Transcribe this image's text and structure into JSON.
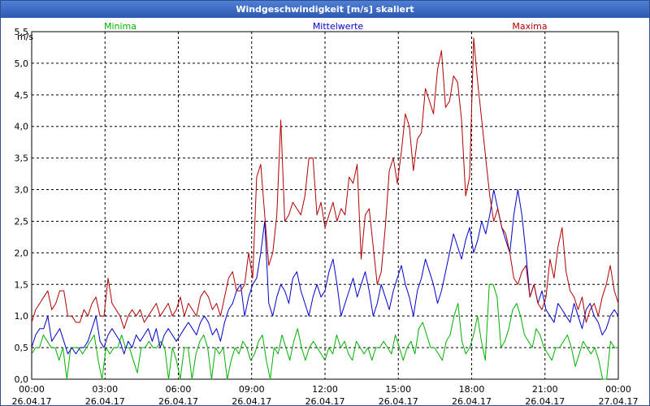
{
  "window": {
    "title": "Windgeschwindigkeit [m/s] skaliert"
  },
  "chart_data": {
    "type": "line",
    "title": "Windgeschwindigkeit [m/s] skaliert",
    "ylabel": "m/s",
    "xlabel": "",
    "ylim": [
      0,
      5.5
    ],
    "xlim": [
      0,
      24
    ],
    "grid": true,
    "legend_placement": "top",
    "y_ticks": [
      {
        "value": 0.0,
        "label": "0,0"
      },
      {
        "value": 0.5,
        "label": "0,5"
      },
      {
        "value": 1.0,
        "label": "1,0"
      },
      {
        "value": 1.5,
        "label": "1,5"
      },
      {
        "value": 2.0,
        "label": "2,0"
      },
      {
        "value": 2.5,
        "label": "2,5"
      },
      {
        "value": 3.0,
        "label": "3,0"
      },
      {
        "value": 3.5,
        "label": "3,5"
      },
      {
        "value": 4.0,
        "label": "4,0"
      },
      {
        "value": 4.5,
        "label": "4,5"
      },
      {
        "value": 5.0,
        "label": "5,0"
      },
      {
        "value": 5.5,
        "label": "5,5"
      }
    ],
    "x_ticks": [
      {
        "value": 0,
        "time": "00:00",
        "date": "26.04.17"
      },
      {
        "value": 3,
        "time": "03:00",
        "date": "26.04.17"
      },
      {
        "value": 6,
        "time": "06:00",
        "date": "26.04.17"
      },
      {
        "value": 9,
        "time": "09:00",
        "date": "26.04.17"
      },
      {
        "value": 12,
        "time": "12:00",
        "date": "26.04.17"
      },
      {
        "value": 15,
        "time": "15:00",
        "date": "26.04.17"
      },
      {
        "value": 18,
        "time": "18:00",
        "date": "26.04.17"
      },
      {
        "value": 21,
        "time": "21:00",
        "date": "26.04.17"
      },
      {
        "value": 24,
        "time": "00:00",
        "date": "27.04.17"
      }
    ],
    "series": [
      {
        "name": "Minima",
        "color": "#00b000",
        "values": [
          0.4,
          0.5,
          0.5,
          0.7,
          0.6,
          0.5,
          0.5,
          0.3,
          0.5,
          0.0,
          0.5,
          0.5,
          0.5,
          0.4,
          0.5,
          0.6,
          0.7,
          0.3,
          0.0,
          0.5,
          0.4,
          0.5,
          0.5,
          0.7,
          0.5,
          0.5,
          0.3,
          0.1,
          0.5,
          0.5,
          0.6,
          0.5,
          0.5,
          0.6,
          0.5,
          0.0,
          0.5,
          0.3,
          0.0,
          0.5,
          0.5,
          0.0,
          0.4,
          0.6,
          0.7,
          0.5,
          0.0,
          0.5,
          0.4,
          0.5,
          0.0,
          0.3,
          0.5,
          0.4,
          0.6,
          0.5,
          0.3,
          0.4,
          0.6,
          0.7,
          0.3,
          0.0,
          0.5,
          0.4,
          0.7,
          0.5,
          0.3,
          0.6,
          0.8,
          0.5,
          0.3,
          0.5,
          0.6,
          0.5,
          0.4,
          0.3,
          0.5,
          0.4,
          0.7,
          0.5,
          0.6,
          0.4,
          0.3,
          0.6,
          0.5,
          0.4,
          0.5,
          0.3,
          0.5,
          0.5,
          0.6,
          0.5,
          0.4,
          0.7,
          0.5,
          0.3,
          0.5,
          0.6,
          0.4,
          0.8,
          0.9,
          0.7,
          0.5,
          0.5,
          0.4,
          0.3,
          0.6,
          0.7,
          1.0,
          1.2,
          0.6,
          0.4,
          0.5,
          0.7,
          1.0,
          0.6,
          0.3,
          1.5,
          1.5,
          1.3,
          0.5,
          0.6,
          0.8,
          1.1,
          1.2,
          1.0,
          0.7,
          0.6,
          0.5,
          0.8,
          0.7,
          0.5,
          0.4,
          0.3,
          0.5,
          0.5,
          0.6,
          0.7,
          0.5,
          0.2,
          0.4,
          0.6,
          0.5,
          0.4,
          0.5,
          0.3,
          0.0,
          0.0,
          0.6,
          0.5,
          0.5
        ]
      },
      {
        "name": "Mittelwerte",
        "color": "#0000cc",
        "values": [
          0.5,
          0.7,
          0.8,
          0.8,
          1.0,
          0.6,
          0.7,
          0.8,
          0.6,
          0.4,
          0.5,
          0.4,
          0.5,
          0.5,
          0.6,
          0.8,
          1.0,
          0.6,
          0.5,
          0.7,
          0.8,
          0.7,
          0.6,
          0.4,
          0.6,
          0.5,
          0.7,
          0.6,
          0.7,
          0.8,
          0.6,
          0.8,
          0.5,
          0.7,
          0.8,
          0.7,
          0.6,
          0.7,
          0.8,
          0.9,
          0.8,
          0.7,
          0.9,
          1.0,
          0.9,
          0.7,
          0.8,
          0.6,
          0.9,
          1.1,
          1.2,
          1.4,
          1.5,
          1.0,
          1.3,
          1.5,
          1.6,
          2.0,
          2.5,
          1.2,
          1.0,
          1.3,
          1.5,
          1.4,
          1.2,
          1.6,
          1.7,
          1.4,
          1.2,
          1.0,
          1.3,
          1.5,
          1.3,
          1.4,
          1.7,
          1.9,
          1.5,
          1.0,
          1.2,
          1.4,
          1.6,
          1.3,
          1.5,
          1.7,
          1.4,
          1.0,
          1.2,
          1.5,
          1.3,
          1.1,
          1.4,
          1.6,
          1.8,
          1.5,
          1.3,
          1.0,
          1.4,
          1.6,
          1.9,
          1.7,
          1.5,
          1.2,
          1.4,
          1.7,
          2.0,
          2.3,
          2.1,
          1.9,
          2.2,
          2.4,
          2.0,
          2.2,
          2.5,
          2.3,
          2.6,
          3.0,
          2.7,
          2.4,
          2.2,
          2.0,
          2.6,
          3.0,
          2.6,
          2.0,
          1.3,
          1.5,
          1.2,
          1.4,
          1.1,
          1.0,
          0.9,
          1.2,
          1.1,
          1.0,
          0.9,
          1.2,
          1.0,
          0.8,
          1.1,
          1.2,
          1.0,
          0.9,
          0.7,
          0.8,
          1.0,
          1.1,
          1.0
        ]
      },
      {
        "name": "Maxima",
        "color": "#b00000",
        "values": [
          0.9,
          1.1,
          1.2,
          1.3,
          1.4,
          1.1,
          1.2,
          1.4,
          1.4,
          1.0,
          1.0,
          0.9,
          0.9,
          1.1,
          1.0,
          1.2,
          1.3,
          1.0,
          1.0,
          1.6,
          1.2,
          1.1,
          1.0,
          0.8,
          1.0,
          1.1,
          1.0,
          1.1,
          0.9,
          1.0,
          1.1,
          1.2,
          1.0,
          1.1,
          1.2,
          1.0,
          1.1,
          1.3,
          1.0,
          1.2,
          1.1,
          1.0,
          1.3,
          1.4,
          1.3,
          1.1,
          1.2,
          1.0,
          1.3,
          1.6,
          1.7,
          1.4,
          1.4,
          1.5,
          2.0,
          1.6,
          3.2,
          3.4,
          2.6,
          1.8,
          2.0,
          2.6,
          4.1,
          2.5,
          2.6,
          2.8,
          2.7,
          2.6,
          2.9,
          3.5,
          3.5,
          2.6,
          2.8,
          2.4,
          2.6,
          2.8,
          2.5,
          2.7,
          2.6,
          3.2,
          3.1,
          3.4,
          1.9,
          2.6,
          2.7,
          2.1,
          1.5,
          1.7,
          2.4,
          3.3,
          3.5,
          3.1,
          3.6,
          4.2,
          4.0,
          3.3,
          3.8,
          3.9,
          4.6,
          4.4,
          4.2,
          4.9,
          5.2,
          4.3,
          4.4,
          4.8,
          4.7,
          4.1,
          2.9,
          3.2,
          5.4,
          4.7,
          4.1,
          3.5,
          2.9,
          2.5,
          2.7,
          2.4,
          2.3,
          2.0,
          1.6,
          1.5,
          1.7,
          1.8,
          1.3,
          1.5,
          1.2,
          1.1,
          1.3,
          1.9,
          1.6,
          2.1,
          2.4,
          1.7,
          1.4,
          1.3,
          1.1,
          1.3,
          0.9,
          1.1,
          1.2,
          1.0,
          1.3,
          1.5,
          1.8,
          1.4,
          1.2
        ]
      }
    ]
  }
}
